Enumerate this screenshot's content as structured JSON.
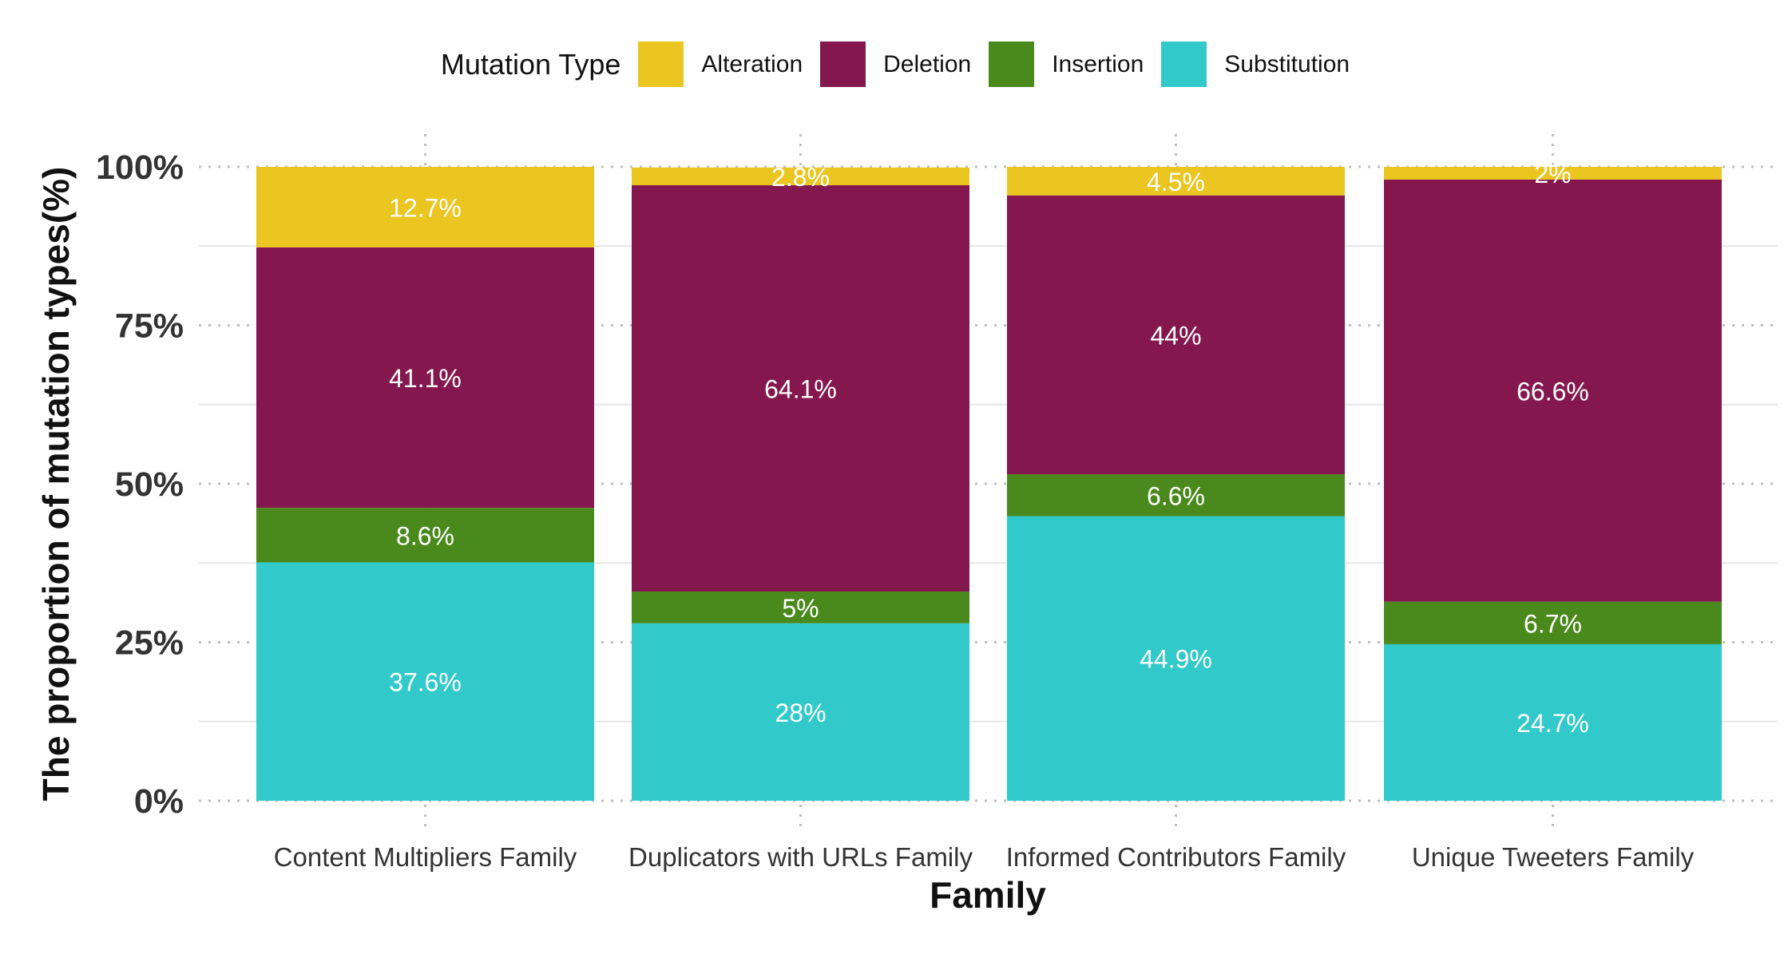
{
  "chart_data": {
    "type": "bar",
    "stacked": true,
    "orientation": "vertical",
    "xlabel": "Family",
    "ylabel": "The proportion of mutation types(%)",
    "categories": [
      "Content Multipliers Family",
      "Duplicators with URLs Family",
      "Informed Contributors Family",
      "Unique Tweeters Family"
    ],
    "ylim": [
      0,
      100
    ],
    "yticks": [
      "0%",
      "25%",
      "50%",
      "75%",
      "100%"
    ],
    "grid": true,
    "legend": {
      "title": "Mutation Type",
      "position": "top"
    },
    "series": [
      {
        "name": "Substitution",
        "color": "#31C9C9",
        "values": [
          37.6,
          28,
          44.9,
          24.7
        ],
        "labels": [
          "37.6%",
          "28%",
          "44.9%",
          "24.7%"
        ]
      },
      {
        "name": "Insertion",
        "color": "#4A891C",
        "values": [
          8.6,
          5,
          6.6,
          6.7
        ],
        "labels": [
          "8.6%",
          "5%",
          "6.6%",
          "6.7%"
        ]
      },
      {
        "name": "Deletion",
        "color": "#84184E",
        "values": [
          41.1,
          64.1,
          44,
          66.6
        ],
        "labels": [
          "41.1%",
          "64.1%",
          "44%",
          "66.6%"
        ]
      },
      {
        "name": "Alteration",
        "color": "#EBC520",
        "values": [
          12.7,
          2.8,
          4.5,
          2
        ],
        "labels": [
          "12.7%",
          "2.8%",
          "4.5%",
          "2%"
        ]
      }
    ],
    "legend_order": [
      "Alteration",
      "Deletion",
      "Insertion",
      "Substitution"
    ]
  }
}
